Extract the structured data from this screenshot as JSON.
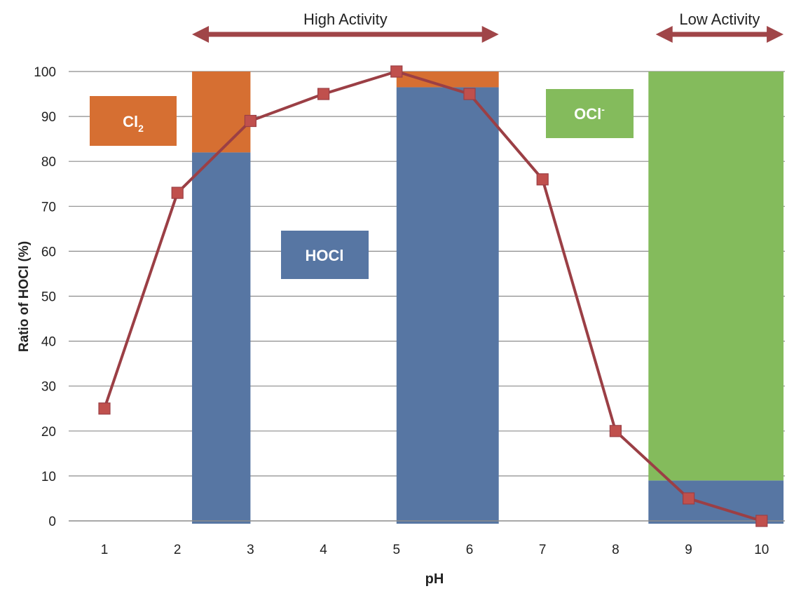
{
  "chart_data": {
    "type": "line",
    "xlabel": "pH",
    "ylabel": "Ratio of HOCl (%)",
    "categories": [
      "1",
      "2",
      "3",
      "4",
      "5",
      "6",
      "7",
      "8",
      "9",
      "10"
    ],
    "ylim": [
      0,
      100
    ],
    "yticks": [
      0,
      10,
      20,
      30,
      40,
      50,
      60,
      70,
      80,
      90,
      100
    ],
    "grid": true,
    "series": [
      {
        "values": [
          25,
          73,
          89,
          95,
          100,
          95,
          76,
          20,
          5,
          0
        ],
        "color": "#9b3f45",
        "marker": "square"
      }
    ],
    "bands": [
      {
        "x_from": 2.2,
        "x_to": 3.0,
        "segments": [
          {
            "species": "HOCl",
            "from": 0,
            "to": 82,
            "color": "#5776a3"
          },
          {
            "species": "Cl2",
            "from": 82,
            "to": 100,
            "color": "#d66f32"
          }
        ]
      },
      {
        "x_from": 5.0,
        "x_to": 6.4,
        "segments": [
          {
            "species": "HOCl",
            "from": 0,
            "to": 96.5,
            "color": "#5776a3"
          },
          {
            "species": "Cl2",
            "from": 96.5,
            "to": 100,
            "color": "#d66f32"
          }
        ]
      },
      {
        "x_from": 8.45,
        "x_to": 10.3,
        "segments": [
          {
            "species": "HOCl",
            "from": 0,
            "to": 9,
            "color": "#5776a3"
          },
          {
            "species": "OCl-",
            "from": 9,
            "to": 100,
            "color": "#84bb5c"
          }
        ]
      }
    ],
    "labels": {
      "cl2": {
        "main": "Cl",
        "sub": "2",
        "color": "#d66f32"
      },
      "hocl": {
        "text": "HOCl",
        "color": "#5776a3"
      },
      "ocl": {
        "main": "OCl",
        "sup": "-",
        "color": "#84bb5c"
      }
    },
    "activity": [
      {
        "text": "High Activity",
        "x_from": 2.2,
        "x_to": 6.4
      },
      {
        "text": "Low Activity",
        "x_from": 8.55,
        "x_to": 10.3
      }
    ],
    "arrow_color": "#a04548"
  }
}
